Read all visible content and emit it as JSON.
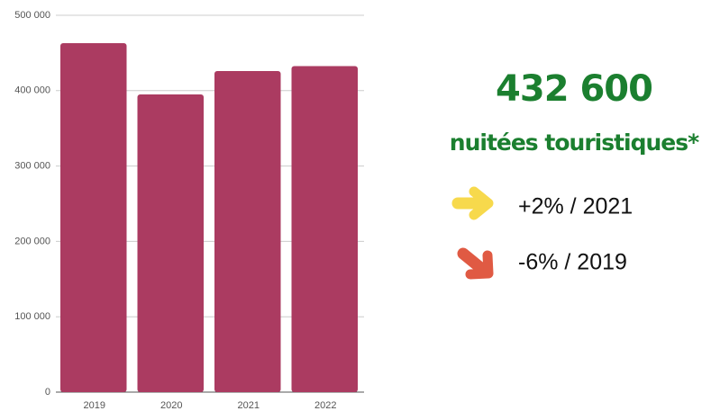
{
  "chart_data": {
    "type": "bar",
    "categories": [
      "2019",
      "2020",
      "2021",
      "2022"
    ],
    "values": [
      463000,
      395000,
      426000,
      432600
    ],
    "color": "#ab3b61",
    "ylim": [
      0,
      500000
    ],
    "yticks": [
      0,
      {
        "value": 100000,
        "label": "100 000"
      },
      {
        "value": 200000,
        "label": "200 000"
      },
      {
        "value": 300000,
        "label": "300 000"
      },
      {
        "value": 400000,
        "label": "400 000"
      },
      {
        "value": 500000,
        "label": "500 000"
      }
    ],
    "grid": true
  },
  "panel": {
    "headline": "432 600",
    "subtitle": "nuitées touristiques*",
    "stats": [
      "+2% / 2021",
      "-6% / 2019"
    ]
  }
}
